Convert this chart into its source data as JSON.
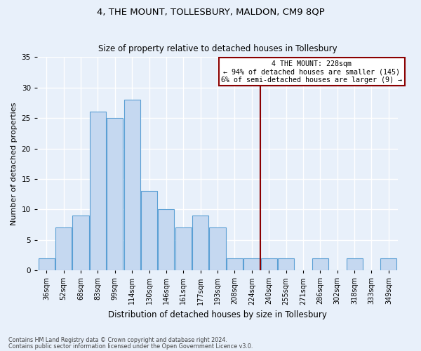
{
  "title": "4, THE MOUNT, TOLLESBURY, MALDON, CM9 8QP",
  "subtitle": "Size of property relative to detached houses in Tollesbury",
  "xlabel": "Distribution of detached houses by size in Tollesbury",
  "ylabel": "Number of detached properties",
  "bar_labels": [
    "36sqm",
    "52sqm",
    "68sqm",
    "83sqm",
    "99sqm",
    "114sqm",
    "130sqm",
    "146sqm",
    "161sqm",
    "177sqm",
    "193sqm",
    "208sqm",
    "224sqm",
    "240sqm",
    "255sqm",
    "271sqm",
    "286sqm",
    "302sqm",
    "318sqm",
    "333sqm",
    "349sqm"
  ],
  "bar_values": [
    2,
    7,
    9,
    26,
    25,
    28,
    13,
    10,
    7,
    9,
    7,
    2,
    2,
    2,
    2,
    0,
    2,
    0,
    2,
    0,
    2
  ],
  "bar_color": "#c5d8f0",
  "bar_edgecolor": "#5a9fd4",
  "vline_x_index": 12.5,
  "vline_color": "#8b0000",
  "ylim": [
    0,
    35
  ],
  "yticks": [
    0,
    5,
    10,
    15,
    20,
    25,
    30,
    35
  ],
  "annotation_title": "4 THE MOUNT: 228sqm",
  "annotation_line1": "← 94% of detached houses are smaller (145)",
  "annotation_line2": "6% of semi-detached houses are larger (9) →",
  "annotation_box_color": "#8b0000",
  "background_color": "#e8f0fa",
  "grid_color": "#ffffff",
  "footnote1": "Contains HM Land Registry data © Crown copyright and database right 2024.",
  "footnote2": "Contains public sector information licensed under the Open Government Licence v3.0.",
  "title_fontsize": 9.5,
  "subtitle_fontsize": 8.5,
  "ylabel_fontsize": 8,
  "xlabel_fontsize": 8.5,
  "tick_fontsize": 7,
  "footnote_fontsize": 5.8
}
